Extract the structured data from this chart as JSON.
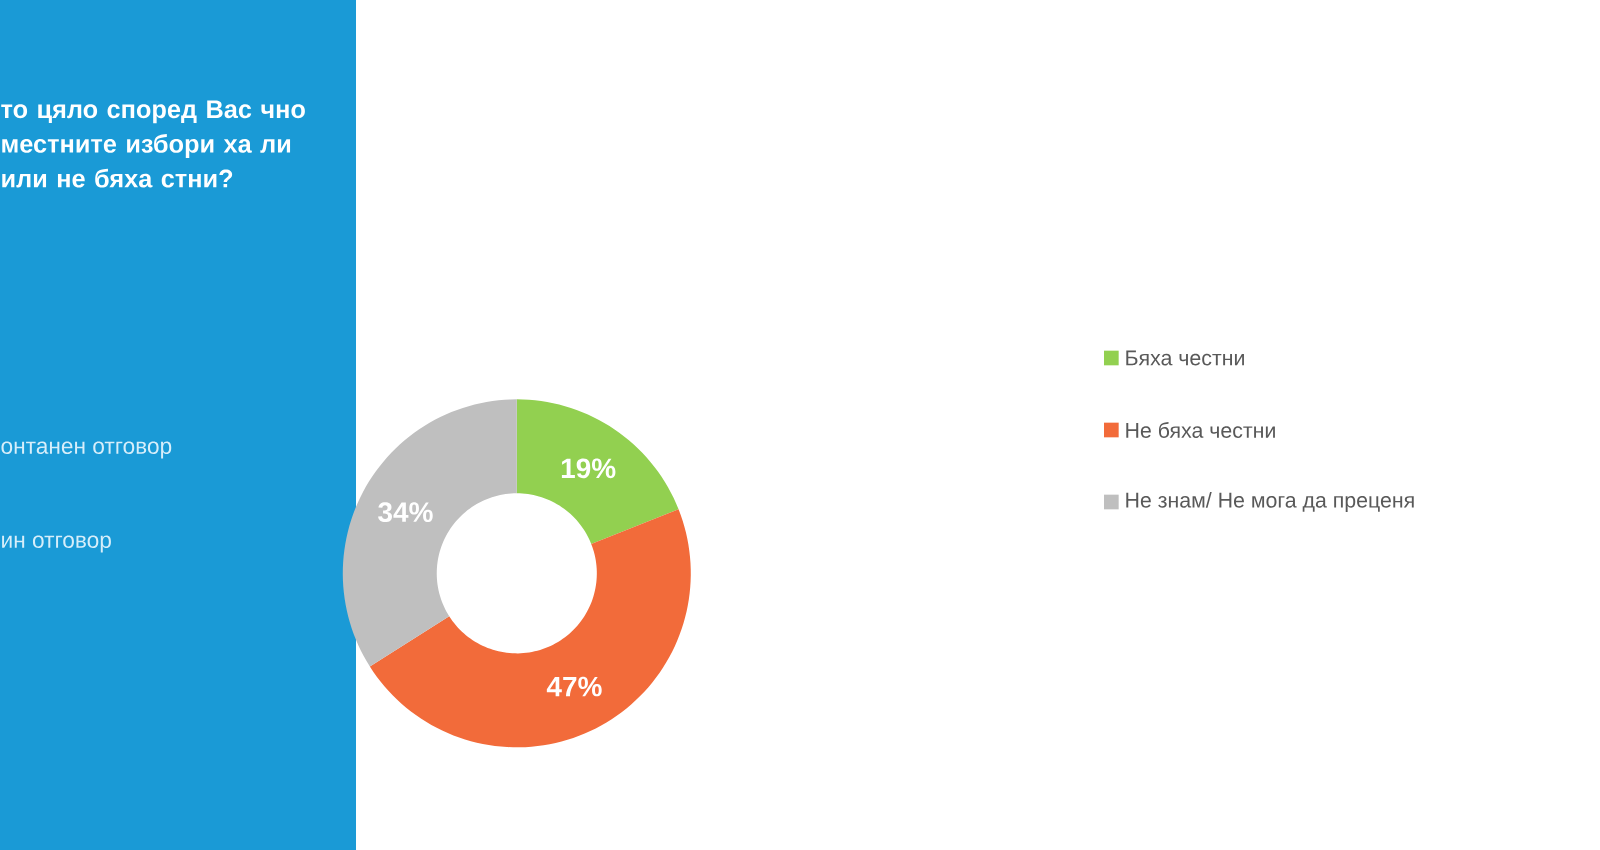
{
  "chart_data": {
    "type": "donut",
    "title": "то цяло според Вас чно местните избори ха ли или не бяха стни?",
    "categories": [
      "Бяха честни",
      "Не бяха честни",
      "Не знам/ Не мога да преценя"
    ],
    "values": [
      19,
      47,
      34
    ],
    "colors": [
      "#92d050",
      "#f26b3a",
      "#bfbfbf"
    ],
    "value_labels": [
      "19%",
      "47%",
      "34%"
    ],
    "legend": "right",
    "annotations": [
      "онтанен отговор",
      "ин отговор"
    ]
  }
}
